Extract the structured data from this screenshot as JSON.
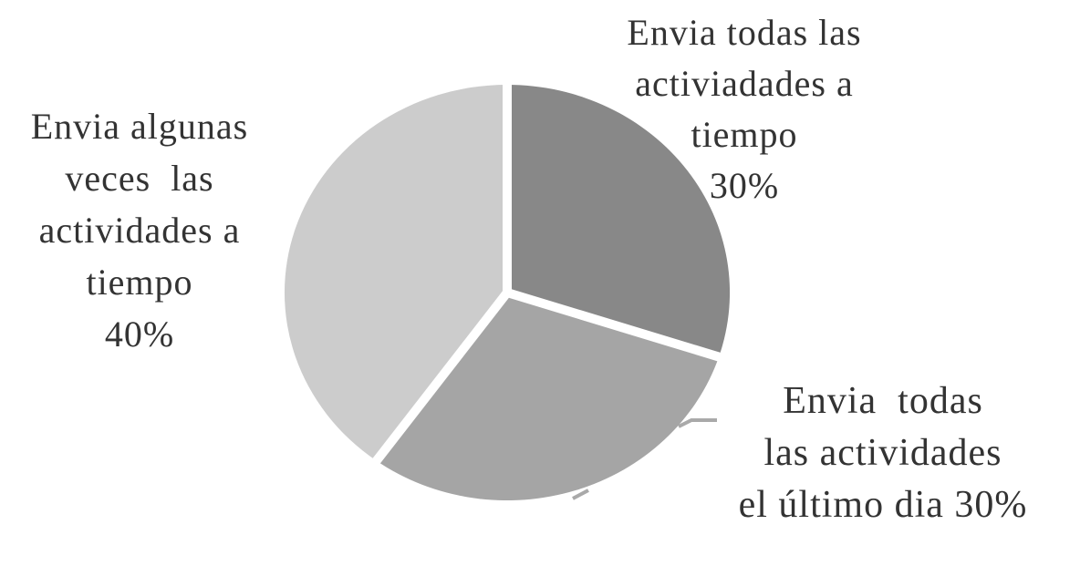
{
  "figure": {
    "background": "#ffffff"
  },
  "chart_data": {
    "type": "pie",
    "title": "",
    "legend": "none",
    "labels_position": "outside",
    "unit": "%",
    "total": 100,
    "start_angle_deg": 0,
    "direction": "clockwise",
    "separator_color": "#ffffff",
    "leader_line_color": "#a9a9a9",
    "label_text_color": "#333333",
    "slices": [
      {
        "label": "Envia todas las activiadades a tiempo",
        "value": 30,
        "percent_text": "30%",
        "color": "#888888",
        "display_text": "Envia todas las\nactiviadades a\ntiempo\n30%"
      },
      {
        "label": "Envia todas las actividades el último dia",
        "value": 30,
        "percent_text": "30%",
        "color": "#a5a5a5",
        "display_text": "Envia  todas\nlas actividades\nel último dia 30%"
      },
      {
        "label": "Envia algunas veces las actividades a tiempo",
        "value": 40,
        "percent_text": "40%",
        "color": "#cccccc",
        "display_text": "Envia algunas\nveces  las\nactividades a\ntiempo\n40%"
      }
    ]
  }
}
